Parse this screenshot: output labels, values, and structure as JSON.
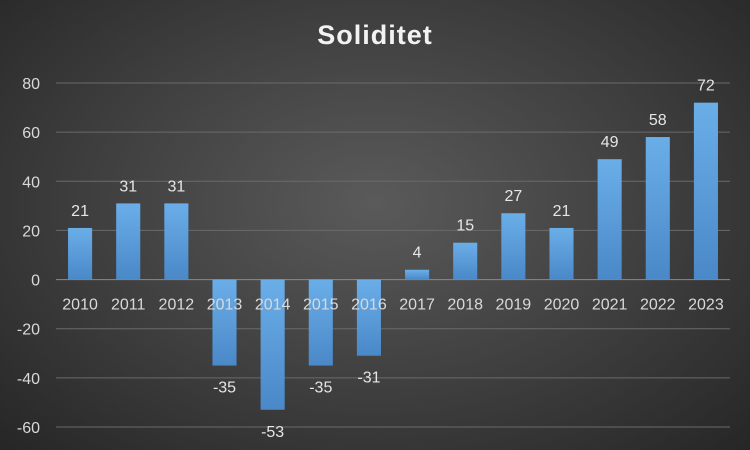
{
  "chart_data": {
    "type": "bar",
    "title": "Soliditet",
    "xlabel": "",
    "ylabel": "",
    "categories": [
      "2010",
      "2011",
      "2012",
      "2013",
      "2014",
      "2015",
      "2016",
      "2017",
      "2018",
      "2019",
      "2020",
      "2021",
      "2022",
      "2023"
    ],
    "values": [
      21,
      31,
      31,
      -35,
      -53,
      -35,
      -31,
      4,
      15,
      27,
      21,
      49,
      58,
      72
    ],
    "data_labels": [
      "21",
      "31",
      "31",
      "-35",
      "-53",
      "-35",
      "-31",
      "4",
      "15",
      "27",
      "21",
      "49",
      "58",
      "72"
    ],
    "ylim": [
      -60,
      80
    ],
    "yticks": [
      -60,
      -40,
      -20,
      0,
      20,
      40,
      60,
      80
    ],
    "ytick_labels": [
      "-60",
      "-40",
      "-20",
      "0",
      "20",
      "40",
      "60",
      "80"
    ],
    "grid": true,
    "legend": "none",
    "colors": {
      "bar": "#5b9bd5",
      "background": "#404040",
      "text": "#d9d9d9"
    }
  }
}
